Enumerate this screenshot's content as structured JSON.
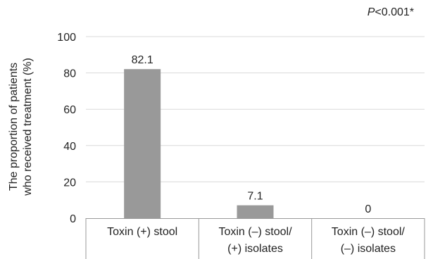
{
  "chart_data": {
    "type": "bar",
    "categories": [
      [
        "Toxin (+) stool"
      ],
      [
        "Toxin (–) stool/",
        "(+) isolates"
      ],
      [
        "Toxin (–) stool/",
        "(–) isolates"
      ]
    ],
    "values": [
      82.1,
      7.1,
      0
    ],
    "data_labels": [
      "82.1",
      "7.1",
      "0"
    ],
    "ylabel_lines": [
      "The proportion of patients",
      "who received treatment (%)"
    ],
    "yticks": [
      0,
      20,
      40,
      60,
      80,
      100
    ],
    "ylim": [
      0,
      100
    ],
    "annotation": {
      "italic": "P",
      "rest": "<0.001*"
    },
    "grid": "horizontal",
    "bar_color": "#999999",
    "grid_color": "#d9d9d9",
    "axis_color": "#999999"
  }
}
